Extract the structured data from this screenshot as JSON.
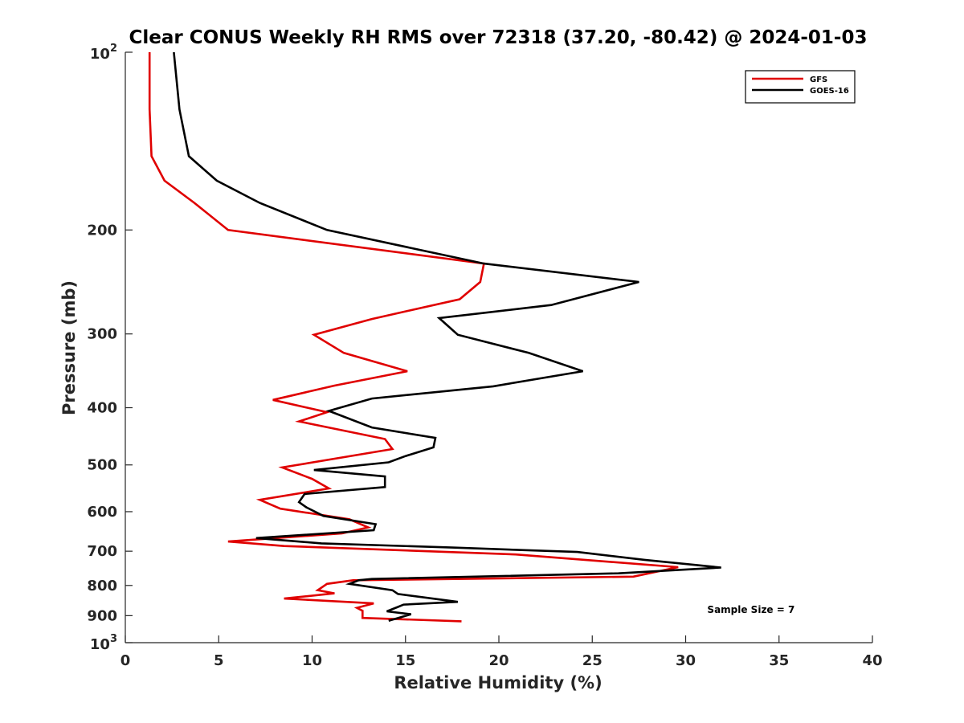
{
  "chart_data": {
    "type": "line",
    "title": "Clear CONUS Weekly RH RMS over 72318 (37.20, -80.42) @ 2024-01-03",
    "xlabel": "Relative Humidity (%)",
    "ylabel": "Pressure (mb)",
    "xlim": [
      0,
      40
    ],
    "ylim": [
      100,
      1000
    ],
    "y_scale": "log",
    "y_reversed": true,
    "grid": false,
    "legend_position": "top-right",
    "x_ticks": [
      0,
      5,
      10,
      15,
      20,
      25,
      30,
      35,
      40
    ],
    "x_tick_labels": [
      "0",
      "5",
      "10",
      "15",
      "20",
      "25",
      "30",
      "35",
      "40"
    ],
    "y_ticks": [
      200,
      300,
      400,
      500,
      600,
      700,
      800,
      900
    ],
    "y_tick_labels": [
      "200",
      "300",
      "400",
      "500",
      "600",
      "700",
      "800",
      "900"
    ],
    "y_decade_labels": [
      {
        "value": 100,
        "base": "10",
        "exp": "2"
      },
      {
        "value": 1000,
        "base": "10",
        "exp": "3"
      }
    ],
    "series": [
      {
        "name": "GFS",
        "color": "#e00000",
        "x": [
          1.3,
          1.3,
          1.4,
          2.1,
          3.7,
          5.5,
          19.2,
          19.0,
          17.9,
          13.2,
          10.1,
          11.7,
          15.1,
          11.2,
          7.9,
          10.8,
          9.3,
          13.9,
          14.3,
          8.4,
          10.0,
          10.9,
          7.2,
          8.3,
          12.0,
          13.0,
          11.6,
          5.5,
          8.5,
          20.9,
          29.6,
          27.2,
          12.2,
          10.8,
          10.3,
          11.2,
          8.5,
          13.3,
          12.4,
          12.7,
          12.7,
          18.0
        ],
        "y": [
          100,
          125,
          150,
          165,
          180,
          200,
          228,
          245,
          262,
          283,
          301,
          323,
          347,
          367,
          388,
          407,
          422,
          452,
          470,
          505,
          528,
          548,
          573,
          593,
          618,
          638,
          653,
          674,
          686,
          709,
          745,
          773,
          784,
          795,
          815,
          825,
          842,
          858,
          873,
          883,
          908,
          920
        ]
      },
      {
        "name": "GOES-16",
        "color": "#000000",
        "x": [
          2.6,
          2.9,
          3.4,
          4.9,
          7.2,
          10.8,
          19.2,
          27.5,
          22.8,
          16.8,
          17.8,
          21.6,
          24.5,
          19.7,
          13.2,
          10.9,
          13.2,
          16.6,
          16.5,
          15.0,
          14.1,
          10.1,
          13.9,
          13.9,
          9.6,
          9.3,
          9.7,
          10.6,
          13.4,
          13.3,
          7.0,
          10.5,
          17.5,
          24.2,
          27.8,
          31.9,
          26.4,
          13.2,
          12.5,
          12.0,
          14.3,
          14.6,
          17.8,
          14.9,
          14.6,
          14.0,
          15.3,
          14.1
        ],
        "y": [
          100,
          125,
          150,
          165,
          180,
          200,
          228,
          245,
          268,
          282,
          301,
          323,
          347,
          368,
          386,
          405,
          432,
          450,
          467,
          483,
          495,
          510,
          523,
          545,
          560,
          578,
          590,
          610,
          630,
          645,
          665,
          679,
          690,
          702,
          724,
          746,
          763,
          780,
          784,
          795,
          815,
          827,
          853,
          862,
          870,
          885,
          895,
          918
        ]
      }
    ],
    "annotations": [
      {
        "text": "Sample Size = 7",
        "x": 33.5,
        "y": 890
      }
    ]
  }
}
